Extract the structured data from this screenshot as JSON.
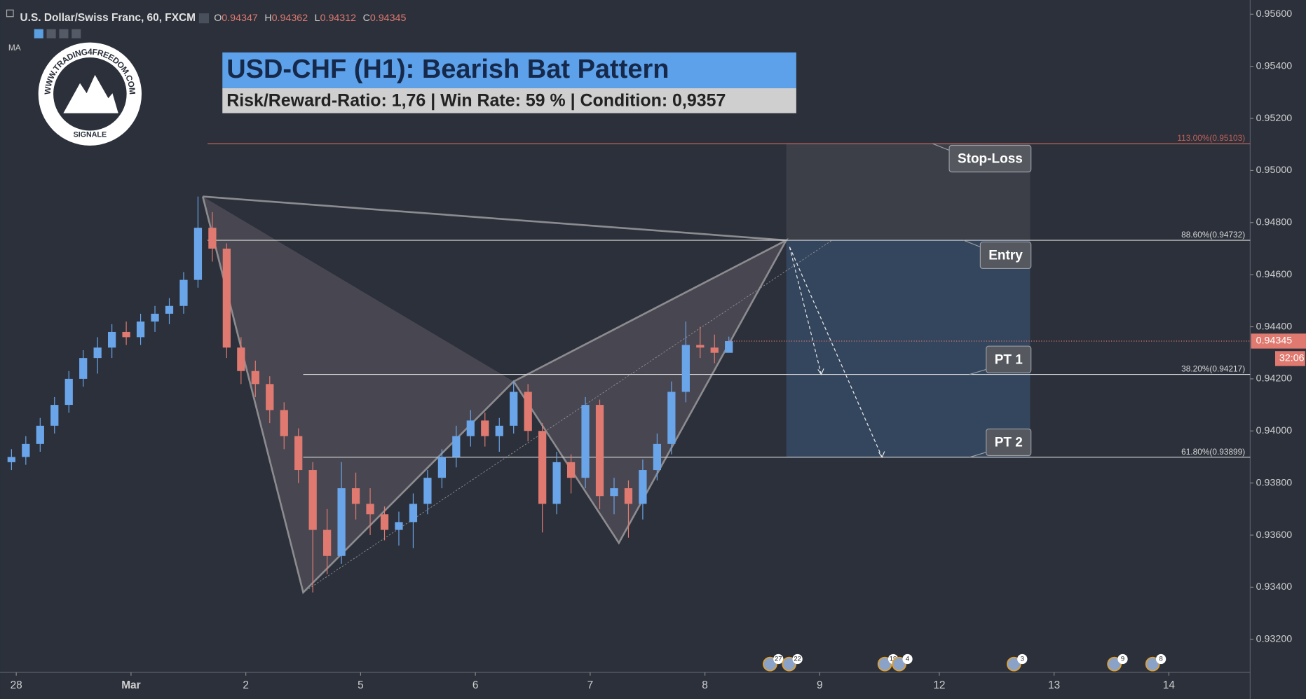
{
  "chart_data": {
    "type": "candlestick",
    "symbol": "U.S. Dollar/Swiss Franc, 60, FXCM",
    "ohlc": [
      {
        "label": "O",
        "value": 0.94347
      },
      {
        "label": "H",
        "value": 0.94362
      },
      {
        "label": "L",
        "value": 0.94312
      },
      {
        "label": "C",
        "value": 0.94345
      }
    ],
    "indicator": "MA",
    "title": "USD-CHF (H1): Bearish Bat Pattern",
    "subtitle": "Risk/Reward-Ratio: 1,76 | Win Rate: 59 % | Condition: 0,9357",
    "logo": {
      "text": "WWW.TRADING4FREEDOM.COM",
      "subtext": "SIGNALE"
    },
    "countdown": "32:06",
    "up_color": "#6aa5ea",
    "down_color": "#e07a70",
    "ylim": [
      0.93073,
      0.95629
    ],
    "yticks": [
      {
        "value": 0.932,
        "label": "0.93200"
      },
      {
        "value": 0.934,
        "label": "0.93400"
      },
      {
        "value": 0.936,
        "label": "0.93600"
      },
      {
        "value": 0.938,
        "label": "0.93800"
      },
      {
        "value": 0.94,
        "label": "0.94000"
      },
      {
        "value": 0.942,
        "label": "0.94200"
      },
      {
        "value": 0.944,
        "label": "0.94400"
      },
      {
        "value": 0.946,
        "label": "0.94600"
      },
      {
        "value": 0.948,
        "label": "0.94800"
      },
      {
        "value": 0.95,
        "label": "0.95000"
      },
      {
        "value": 0.952,
        "label": "0.95200"
      },
      {
        "value": 0.954,
        "label": "0.95400"
      },
      {
        "value": 0.956,
        "label": "0.95600"
      }
    ],
    "xlim": [
      -1,
      259
    ],
    "xticks": [
      {
        "value": 1,
        "label": "28"
      },
      {
        "value": 25,
        "label": "Mar"
      },
      {
        "value": 49,
        "label": "2"
      },
      {
        "value": 73,
        "label": "5"
      },
      {
        "value": 97,
        "label": "6"
      },
      {
        "value": 121,
        "label": "7"
      },
      {
        "value": 145,
        "label": "8"
      },
      {
        "value": 169,
        "label": "9"
      },
      {
        "value": 194,
        "label": "12"
      },
      {
        "value": 218,
        "label": "13"
      },
      {
        "value": 242,
        "label": "14"
      }
    ],
    "x": [
      0,
      3,
      6,
      9,
      12,
      15,
      18,
      21,
      24,
      27,
      30,
      33,
      36,
      39,
      42,
      45,
      48,
      51,
      54,
      57,
      60,
      63,
      66,
      69,
      72,
      75,
      78,
      81,
      84,
      87,
      90,
      93,
      96,
      99,
      102,
      105,
      108,
      111,
      114,
      117,
      120,
      123,
      126,
      129,
      132,
      135,
      138,
      141,
      144,
      147,
      150
    ],
    "open": [
      0.9388,
      0.939,
      0.9395,
      0.9402,
      0.941,
      0.942,
      0.9428,
      0.9432,
      0.9438,
      0.9436,
      0.9442,
      0.9445,
      0.9448,
      0.9458,
      0.9478,
      0.947,
      0.9432,
      0.9423,
      0.9418,
      0.9408,
      0.9398,
      0.9385,
      0.9362,
      0.9352,
      0.9378,
      0.9372,
      0.9368,
      0.9362,
      0.9365,
      0.9372,
      0.9382,
      0.939,
      0.9398,
      0.9404,
      0.9398,
      0.9402,
      0.9415,
      0.94,
      0.9372,
      0.9388,
      0.9382,
      0.941,
      0.9375,
      0.9378,
      0.9372,
      0.9385,
      0.9395,
      0.9415,
      0.9433,
      0.9432,
      0.943
    ],
    "high": [
      0.9393,
      0.9398,
      0.9405,
      0.9413,
      0.9423,
      0.9431,
      0.9436,
      0.9441,
      0.9442,
      0.9445,
      0.9448,
      0.9451,
      0.9461,
      0.949,
      0.9484,
      0.9472,
      0.9436,
      0.9427,
      0.9421,
      0.9411,
      0.9401,
      0.9388,
      0.937,
      0.9388,
      0.9384,
      0.9378,
      0.9371,
      0.9369,
      0.9376,
      0.9385,
      0.9393,
      0.9402,
      0.9408,
      0.9407,
      0.9405,
      0.9419,
      0.9418,
      0.9403,
      0.9392,
      0.9391,
      0.9413,
      0.9412,
      0.9382,
      0.9381,
      0.9389,
      0.9399,
      0.9419,
      0.9442,
      0.944,
      0.9437,
      0.94362
    ],
    "low": [
      0.9385,
      0.9387,
      0.9392,
      0.9399,
      0.9407,
      0.9417,
      0.9422,
      0.9428,
      0.9433,
      0.9433,
      0.9438,
      0.9441,
      0.9445,
      0.9455,
      0.9465,
      0.9428,
      0.9418,
      0.9413,
      0.9403,
      0.9393,
      0.938,
      0.9338,
      0.9345,
      0.9349,
      0.9366,
      0.936,
      0.9358,
      0.9356,
      0.9355,
      0.9368,
      0.9378,
      0.9386,
      0.9394,
      0.9394,
      0.9392,
      0.9399,
      0.9396,
      0.9361,
      0.9368,
      0.9376,
      0.9378,
      0.937,
      0.9368,
      0.9359,
      0.9366,
      0.9381,
      0.9391,
      0.9411,
      0.9428,
      0.9426,
      0.94312
    ],
    "close": [
      0.939,
      0.9395,
      0.9402,
      0.941,
      0.942,
      0.9428,
      0.9432,
      0.9438,
      0.9436,
      0.9442,
      0.9445,
      0.9448,
      0.9458,
      0.9478,
      0.947,
      0.9432,
      0.9423,
      0.9418,
      0.9408,
      0.9398,
      0.9385,
      0.9362,
      0.9352,
      0.9378,
      0.9372,
      0.9368,
      0.9362,
      0.9365,
      0.9372,
      0.9382,
      0.939,
      0.9398,
      0.9404,
      0.9398,
      0.9402,
      0.9415,
      0.94,
      0.9372,
      0.9388,
      0.9382,
      0.941,
      0.9375,
      0.9378,
      0.9372,
      0.9385,
      0.9395,
      0.9415,
      0.9433,
      0.9432,
      0.943,
      0.94345
    ],
    "pattern": {
      "x": [
        40,
        61,
        105,
        127,
        162
      ],
      "y": [
        0.949,
        0.9338,
        0.9419,
        0.9357,
        0.94732
      ]
    },
    "levels": [
      {
        "label": "113.00%(0.95103)",
        "value": 0.95103,
        "from": 41,
        "color": "#c0615a",
        "callout": "Stop-Loss",
        "callout_position": "below"
      },
      {
        "label": "88.60%(0.94732)",
        "value": 0.94732,
        "from": 41,
        "color": "#d8d8d8",
        "callout": "Entry",
        "callout_position": "below"
      },
      {
        "label": "38.20%(0.94217)",
        "value": 0.94217,
        "from": 61,
        "color": "#d8d8d8",
        "callout": "PT 1",
        "callout_position": "above"
      },
      {
        "label": "61.80%(0.93899)",
        "value": 0.93899,
        "from": 61,
        "color": "#d8d8d8",
        "callout": "PT 2",
        "callout_position": "above"
      }
    ],
    "trade_box": {
      "x": [
        162,
        213
      ]
    },
    "events": [
      {
        "x": 160,
        "badge": 27
      },
      {
        "x": 164,
        "badge": 22
      },
      {
        "x": 184,
        "badge": 19
      },
      {
        "x": 187,
        "badge": 4
      },
      {
        "x": 211,
        "badge": 3
      },
      {
        "x": 232,
        "badge": 9
      },
      {
        "x": 240,
        "badge": 8
      }
    ]
  }
}
